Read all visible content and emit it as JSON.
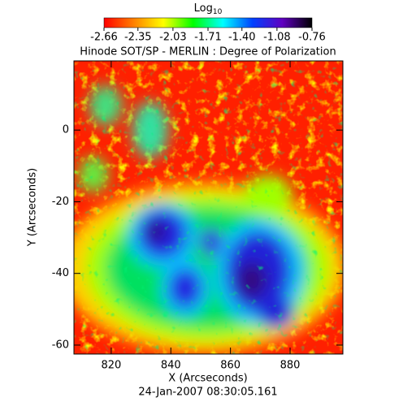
{
  "chart_data": {
    "type": "heatmap",
    "title": "Hinode SOT/SP - MERLIN : Degree of Polarization",
    "x_label": "X (Arcseconds)",
    "y_label": "Y (Arcseconds)",
    "footer": "24-Jan-2007 08:30:05.161",
    "xlim": [
      807.5,
      897.7
    ],
    "xticks": [
      820,
      840,
      860,
      880
    ],
    "ylim": [
      -62.5,
      19.3
    ],
    "yticks": [
      -60,
      -40,
      -20,
      0
    ],
    "colorbar_label": {
      "text": "Log",
      "subscript": "10"
    },
    "colorbar_lim": [
      -2.66,
      -0.76
    ],
    "colorbar_ticks": [
      -2.66,
      -2.35,
      -2.03,
      -1.71,
      {
        "value": -1.4,
        "label": "-1.40"
      },
      -1.08,
      -0.76
    ],
    "colormap": [
      "#ff0000",
      "#ff8000",
      "#ffff00",
      "#00ff00",
      "#00ffff",
      "#0040ff",
      "#6000c0",
      "#000000"
    ]
  }
}
